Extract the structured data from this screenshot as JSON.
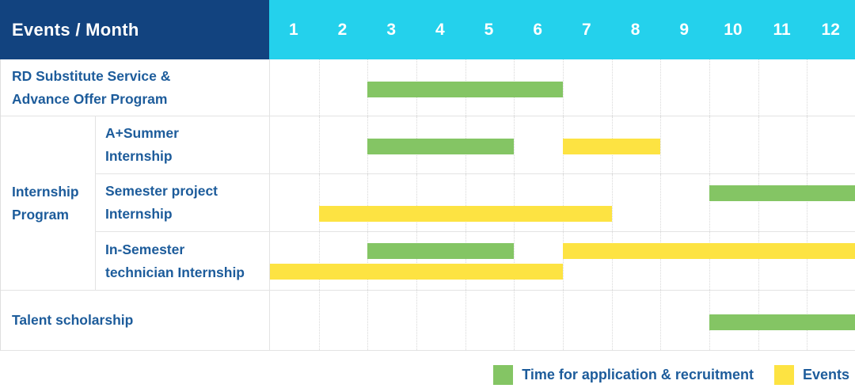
{
  "header": {
    "title": "Events / Month"
  },
  "colors": {
    "header_navy": "#12437F",
    "header_cyan": "#24D1EC",
    "header_text": "#FFFFFF",
    "label_blue": "#1D5C9B",
    "grid_line": "#D8D8D8",
    "row_border": "#E3E3E3",
    "bar_green": "#84C564",
    "bar_yellow": "#FDE342"
  },
  "chart_data": {
    "type": "bar",
    "subtype": "gantt-schedule",
    "title": "Events / Month",
    "x": {
      "unit": "month",
      "ticks": [
        "1",
        "2",
        "3",
        "4",
        "5",
        "6",
        "7",
        "8",
        "9",
        "10",
        "11",
        "12"
      ],
      "range": [
        1,
        12
      ],
      "grid": "dotted-vertical"
    },
    "series_colors": {
      "recruitment": "#84C564",
      "events": "#FDE342"
    },
    "group": {
      "label": "Internship Program",
      "label_lines": [
        "Internship",
        "Program"
      ],
      "spans_rows": [
        1,
        2,
        3
      ]
    },
    "rows": [
      {
        "label": "RD Substitute Service & Advance Offer Program",
        "label_lines": [
          "RD Substitute Service &",
          "Advance Offer Program"
        ],
        "lines": [
          [
            {
              "series": "recruitment",
              "start_month": 3,
              "end_month": 6
            }
          ]
        ]
      },
      {
        "label": "A+Summer Internship",
        "label_lines": [
          "A+Summer",
          "Internship"
        ],
        "lines": [
          [
            {
              "series": "recruitment",
              "start_month": 3,
              "end_month": 5
            },
            {
              "series": "events",
              "start_month": 7,
              "end_month": 8
            }
          ]
        ]
      },
      {
        "label": "Semester project Internship",
        "label_lines": [
          "Semester project",
          "Internship"
        ],
        "lines": [
          [
            {
              "series": "recruitment",
              "start_month": 10,
              "end_month": 12
            }
          ],
          [
            {
              "series": "events",
              "start_month": 2,
              "end_month": 7
            }
          ]
        ]
      },
      {
        "label": "In-Semester technician Internship",
        "label_lines": [
          "In-Semester",
          "technician Internship"
        ],
        "lines": [
          [
            {
              "series": "recruitment",
              "start_month": 3,
              "end_month": 5
            },
            {
              "series": "events",
              "start_month": 7,
              "end_month": 12
            }
          ],
          [
            {
              "series": "events",
              "start_month": 1,
              "end_month": 6
            }
          ]
        ]
      },
      {
        "label": "Talent scholarship",
        "label_lines": [
          "Talent scholarship"
        ],
        "lines": [
          [
            {
              "series": "recruitment",
              "start_month": 10,
              "end_month": 12
            }
          ]
        ]
      }
    ],
    "legend": [
      {
        "series": "recruitment",
        "label": "Time for application & recruitment"
      },
      {
        "series": "events",
        "label": "Events"
      }
    ],
    "legend_position": "bottom-right"
  }
}
